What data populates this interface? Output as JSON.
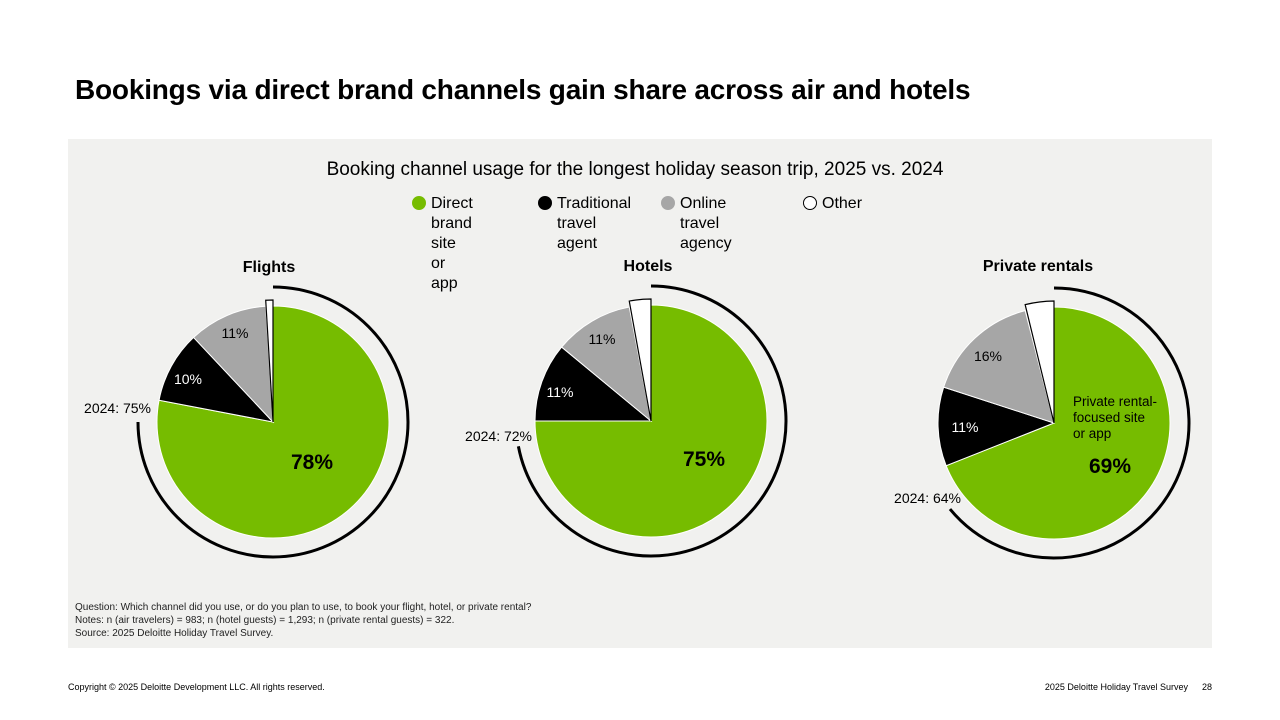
{
  "headline": "Bookings via direct brand channels gain share across air and hotels",
  "chart_title": "Booking channel usage for the longest holiday season trip, 2025 vs. 2024",
  "legend": [
    {
      "label": "Direct brand\nsite or app",
      "color": "#76bc00",
      "stroke": "#76bc00"
    },
    {
      "label": "Traditional\ntravel agent",
      "color": "#000000",
      "stroke": "#000000"
    },
    {
      "label": "Online travel\nagency",
      "color": "#a6a6a6",
      "stroke": "#a6a6a6"
    },
    {
      "label": "Other",
      "color": "#ffffff",
      "stroke": "#000000"
    }
  ],
  "chart_data": [
    {
      "type": "pie",
      "title": "Flights",
      "categories": [
        "Direct brand site or app",
        "Traditional travel agent",
        "Online travel agency",
        "Other"
      ],
      "values": [
        78,
        10,
        11,
        1
      ],
      "labels": [
        "78%",
        "10%",
        "11%",
        ""
      ],
      "prior_year_label": "2024: 75%",
      "prior_year_value": 75
    },
    {
      "type": "pie",
      "title": "Hotels",
      "categories": [
        "Direct brand site or app",
        "Traditional travel agent",
        "Online travel agency",
        "Other"
      ],
      "values": [
        75,
        11,
        11,
        3
      ],
      "labels": [
        "75%",
        "11%",
        "11%",
        ""
      ],
      "prior_year_label": "2024: 72%",
      "prior_year_value": 72
    },
    {
      "type": "pie",
      "title": "Private rentals",
      "categories": [
        "Private rental-focused site or app",
        "Traditional travel agent",
        "Online travel agency",
        "Other"
      ],
      "values": [
        69,
        11,
        16,
        4
      ],
      "labels": [
        "69%",
        "11%",
        "16%",
        ""
      ],
      "annotation": "Private rental-\nfocused site\nor app",
      "prior_year_label": "2024: 64%",
      "prior_year_value": 64
    }
  ],
  "notes": [
    "Question: Which channel did you use, or do you plan to use, to book your flight, hotel, or private rental?",
    "Notes: n (air travelers) = 983; n (hotel guests) = 1,293; n (private rental guests) = 322.",
    "Source: 2025 Deloitte Holiday Travel Survey."
  ],
  "footer": {
    "copyright": "Copyright © 2025 Deloitte Development LLC. All rights reserved.",
    "report": "2025 Deloitte Holiday Travel Survey",
    "page": "28"
  }
}
